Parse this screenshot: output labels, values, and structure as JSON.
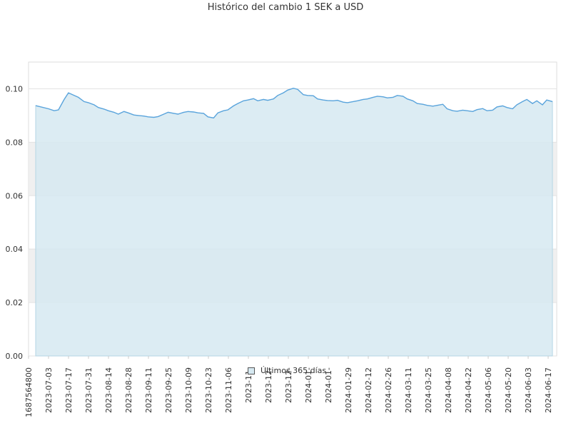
{
  "chart_data": {
    "type": "area",
    "title": "Histórico del cambio 1 SEK a USD",
    "xlabel": "",
    "ylabel": "",
    "ylim": [
      0,
      0.11
    ],
    "yticks": [
      "0.00",
      "0.02",
      "0.04",
      "0.06",
      "0.08",
      "0.10"
    ],
    "xticks": [
      "1687564800",
      "2023-07-03",
      "2023-07-17",
      "2023-07-31",
      "2023-08-14",
      "2023-08-28",
      "2023-09-11",
      "2023-09-25",
      "2023-10-09",
      "2023-10-23",
      "2023-11-06",
      "2023-11-",
      "2023-12-",
      "2023-12-",
      "2024-01-",
      "2024-01-",
      "2024-01-29",
      "2024-02-12",
      "2024-02-26",
      "2024-03-11",
      "2024-03-25",
      "2024-04-08",
      "2024-04-22",
      "2024-05-06",
      "2024-05-20",
      "2024-06-03",
      "2024-06-17"
    ],
    "grid": true,
    "legend_position": "bottom-center",
    "series": [
      {
        "name": "Últimos 365 días",
        "stroke_color": "#5aa4dc",
        "fill_color": "#d6e9f1",
        "x": [
          "2023-06-24",
          "2023-07-03",
          "2023-07-07",
          "2023-07-10",
          "2023-07-14",
          "2023-07-17",
          "2023-07-21",
          "2023-07-24",
          "2023-07-28",
          "2023-07-31",
          "2023-08-04",
          "2023-08-07",
          "2023-08-11",
          "2023-08-14",
          "2023-08-18",
          "2023-08-21",
          "2023-08-25",
          "2023-08-28",
          "2023-09-01",
          "2023-09-04",
          "2023-09-08",
          "2023-09-11",
          "2023-09-15",
          "2023-09-18",
          "2023-09-22",
          "2023-09-25",
          "2023-09-29",
          "2023-10-02",
          "2023-10-06",
          "2023-10-09",
          "2023-10-13",
          "2023-10-16",
          "2023-10-20",
          "2023-10-23",
          "2023-10-27",
          "2023-10-30",
          "2023-11-03",
          "2023-11-06",
          "2023-11-10",
          "2023-11-13",
          "2023-11-17",
          "2023-11-20",
          "2023-11-24",
          "2023-11-27",
          "2023-12-01",
          "2023-12-04",
          "2023-12-08",
          "2023-12-11",
          "2023-12-15",
          "2023-12-18",
          "2023-12-22",
          "2023-12-25",
          "2023-12-29",
          "2024-01-01",
          "2024-01-05",
          "2024-01-08",
          "2024-01-12",
          "2024-01-15",
          "2024-01-19",
          "2024-01-22",
          "2024-01-26",
          "2024-01-29",
          "2024-02-02",
          "2024-02-05",
          "2024-02-09",
          "2024-02-12",
          "2024-02-16",
          "2024-02-19",
          "2024-02-23",
          "2024-02-26",
          "2024-03-01",
          "2024-03-04",
          "2024-03-08",
          "2024-03-11",
          "2024-03-15",
          "2024-03-18",
          "2024-03-22",
          "2024-03-25",
          "2024-03-29",
          "2024-04-01",
          "2024-04-05",
          "2024-04-08",
          "2024-04-12",
          "2024-04-15",
          "2024-04-19",
          "2024-04-22",
          "2024-04-26",
          "2024-04-29",
          "2024-05-03",
          "2024-05-06",
          "2024-05-10",
          "2024-05-13",
          "2024-05-17",
          "2024-05-20",
          "2024-05-24",
          "2024-05-27",
          "2024-05-31",
          "2024-06-03",
          "2024-06-07",
          "2024-06-10",
          "2024-06-14",
          "2024-06-17",
          "2024-06-21"
        ],
        "values": [
          0.0937,
          0.0925,
          0.0918,
          0.0921,
          0.096,
          0.0985,
          0.0975,
          0.0968,
          0.0952,
          0.0948,
          0.094,
          0.093,
          0.0924,
          0.0918,
          0.0912,
          0.0905,
          0.0915,
          0.091,
          0.0902,
          0.09,
          0.0898,
          0.0895,
          0.0893,
          0.0896,
          0.0905,
          0.0912,
          0.0908,
          0.0905,
          0.0912,
          0.0915,
          0.0913,
          0.091,
          0.0908,
          0.0895,
          0.0891,
          0.091,
          0.0918,
          0.0921,
          0.0936,
          0.0945,
          0.0955,
          0.0958,
          0.0963,
          0.0955,
          0.096,
          0.0957,
          0.0962,
          0.0975,
          0.0985,
          0.0995,
          0.1002,
          0.0998,
          0.0978,
          0.0975,
          0.0974,
          0.0962,
          0.0958,
          0.0956,
          0.0955,
          0.0957,
          0.095,
          0.0948,
          0.0952,
          0.0955,
          0.096,
          0.0962,
          0.0968,
          0.0972,
          0.097,
          0.0966,
          0.0968,
          0.0975,
          0.0972,
          0.0962,
          0.0955,
          0.0945,
          0.0942,
          0.0938,
          0.0935,
          0.0938,
          0.0942,
          0.0925,
          0.0918,
          0.0916,
          0.092,
          0.0918,
          0.0915,
          0.0922,
          0.0926,
          0.0918,
          0.092,
          0.0932,
          0.0936,
          0.093,
          0.0925,
          0.094,
          0.0952,
          0.096,
          0.0945,
          0.0955,
          0.094,
          0.0958,
          0.0952
        ]
      }
    ]
  }
}
